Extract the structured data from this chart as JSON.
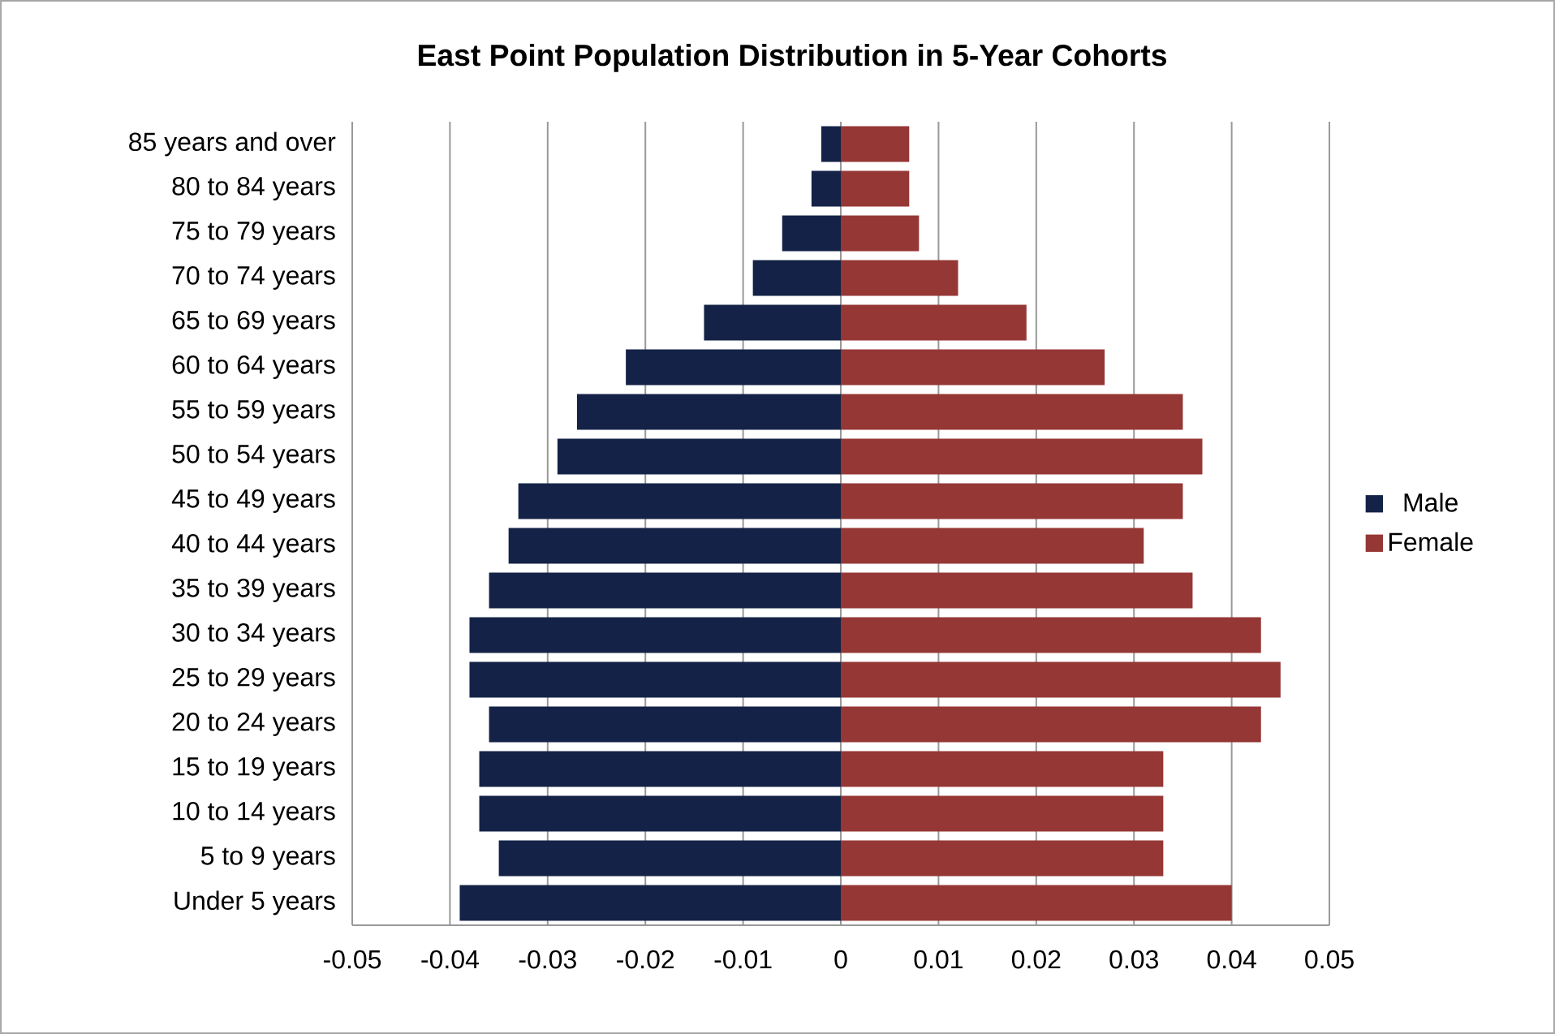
{
  "chart_data": {
    "type": "bar",
    "orientation": "horizontal",
    "title": "East Point Population Distribution in 5-Year Cohorts",
    "categories": [
      "85 years and over",
      "80 to 84 years",
      "75 to 79 years",
      "70 to 74 years",
      "65 to 69 years",
      "60 to 64 years",
      "55 to 59 years",
      "50 to 54 years",
      "45 to 49 years",
      "40 to 44 years",
      "35 to 39 years",
      "30 to 34 years",
      "25 to 29 years",
      "20 to 24 years",
      "15 to 19 years",
      "10 to 14 years",
      "5 to 9 years",
      "Under 5 years"
    ],
    "series": [
      {
        "name": "Male",
        "color": "#142247",
        "values": [
          -0.002,
          -0.003,
          -0.006,
          -0.009,
          -0.014,
          -0.022,
          -0.027,
          -0.029,
          -0.033,
          -0.034,
          -0.036,
          -0.038,
          -0.038,
          -0.036,
          -0.037,
          -0.037,
          -0.035,
          -0.039
        ]
      },
      {
        "name": "Female",
        "color": "#953735",
        "values": [
          0.007,
          0.007,
          0.008,
          0.012,
          0.019,
          0.027,
          0.035,
          0.037,
          0.035,
          0.031,
          0.036,
          0.043,
          0.045,
          0.043,
          0.033,
          0.033,
          0.033,
          0.04
        ]
      }
    ],
    "xlim": [
      -0.05,
      0.05
    ],
    "xticks": [
      -0.05,
      -0.04,
      -0.03,
      -0.02,
      -0.01,
      0,
      0.01,
      0.02,
      0.03,
      0.04,
      0.05
    ],
    "stacked": true,
    "grid": "x",
    "legend": "right"
  }
}
